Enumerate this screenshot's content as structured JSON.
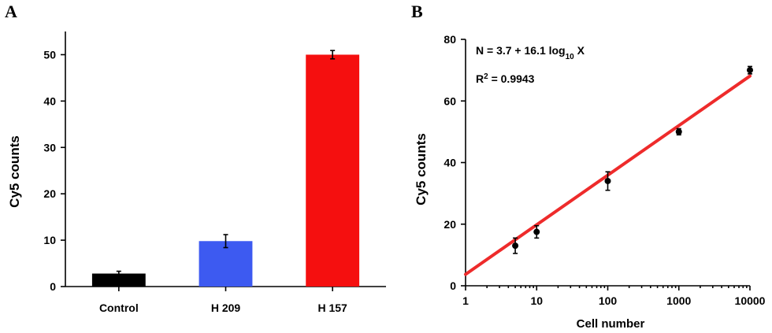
{
  "chart_data": [
    {
      "panel": "A",
      "type": "bar",
      "ylabel": "Cy5 counts",
      "xlabel": "",
      "ylim": [
        0,
        55
      ],
      "yticks": [
        0,
        10,
        20,
        30,
        40,
        50
      ],
      "categories": [
        "Control",
        "H 209",
        "H 157"
      ],
      "values": [
        2.8,
        9.8,
        50.0
      ],
      "errors": [
        0.5,
        1.4,
        0.9
      ],
      "colors": [
        "#000000",
        "#3d5af1",
        "#f50f0f"
      ],
      "grid": false
    },
    {
      "panel": "B",
      "type": "scatter",
      "xscale": "log",
      "xlabel": "Cell number",
      "ylabel": "Cy5 counts",
      "xlim": [
        1,
        10000
      ],
      "ylim": [
        0,
        80
      ],
      "xticks": [
        1,
        10,
        100,
        1000,
        10000
      ],
      "yticks": [
        0,
        20,
        40,
        60,
        80
      ],
      "x": [
        5,
        10,
        100,
        1000,
        10000
      ],
      "y": [
        13,
        17.5,
        34,
        50,
        70
      ],
      "errors": [
        2.5,
        2,
        3,
        1,
        1.2
      ],
      "fit": {
        "intercept": 3.7,
        "slope": 16.1,
        "color": "#ee2b2b"
      },
      "equation": {
        "main": "N = 3.7 + 16.1 log",
        "sub": "10",
        "tail": " X"
      },
      "r2": {
        "label": "R",
        "sup": "2",
        "value": " = 0.9943"
      },
      "grid": false
    }
  ]
}
